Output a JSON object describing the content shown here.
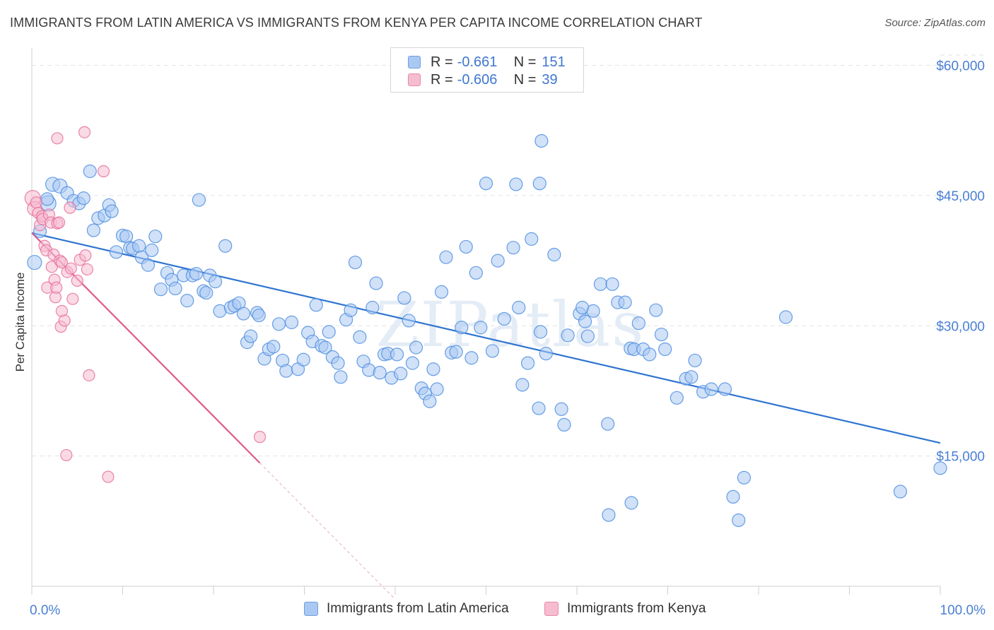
{
  "header": {
    "title": "IMMIGRANTS FROM LATIN AMERICA VS IMMIGRANTS FROM KENYA PER CAPITA INCOME CORRELATION CHART",
    "source": "Source: ZipAtlas.com"
  },
  "watermark": "ZIPatlas",
  "legend": {
    "rows": [
      {
        "r_label": "R = ",
        "r_value": "-0.661",
        "n_label": "N = ",
        "n_value": "151",
        "color": "#a9c8f2",
        "border": "#6f9fe0"
      },
      {
        "r_label": "R = ",
        "r_value": "-0.606",
        "n_label": "N = ",
        "n_value": "39",
        "color": "#f6bcd0",
        "border": "#e88aab"
      }
    ]
  },
  "bottom_legend": {
    "items": [
      {
        "label": "Immigrants from Latin America",
        "color": "#a9c8f2",
        "border": "#6f9fe0"
      },
      {
        "label": "Immigrants from Kenya",
        "color": "#f6bcd0",
        "border": "#e88aab"
      }
    ]
  },
  "chart_data": {
    "type": "scatter",
    "title": "IMMIGRANTS FROM LATIN AMERICA VS IMMIGRANTS FROM KENYA PER CAPITA INCOME CORRELATION CHART",
    "xlabel": "",
    "ylabel": "Per Capita Income",
    "xlim": [
      0,
      100
    ],
    "ylim": [
      0,
      62000
    ],
    "x_tick_labels": [
      "0.0%",
      "100.0%"
    ],
    "y_ticks": [
      15000,
      30000,
      45000,
      60000
    ],
    "y_tick_labels": [
      "$15,000",
      "$30,000",
      "$45,000",
      "$60,000"
    ],
    "grid": true,
    "legend_position": "top-center",
    "series": [
      {
        "name": "Immigrants from Latin America",
        "color": "#4f8ee0",
        "fill": "#a9c8f2",
        "trend": {
          "x": [
            0,
            100
          ],
          "y": [
            40700,
            16500
          ],
          "color": "#2f74d0"
        },
        "points": [
          [
            0.3,
            37300
          ],
          [
            0.9,
            40900
          ],
          [
            1.8,
            44100
          ],
          [
            1.7,
            44600
          ],
          [
            2.3,
            46300
          ],
          [
            3.1,
            46100
          ],
          [
            3.9,
            45300
          ],
          [
            4.6,
            44400
          ],
          [
            5.2,
            44100
          ],
          [
            5.7,
            44700
          ],
          [
            6.4,
            47800
          ],
          [
            6.8,
            41000
          ],
          [
            7.3,
            42400
          ],
          [
            8.0,
            42700
          ],
          [
            8.5,
            43900
          ],
          [
            8.8,
            43200
          ],
          [
            9.3,
            38500
          ],
          [
            10.0,
            40400
          ],
          [
            10.4,
            40300
          ],
          [
            10.8,
            39000
          ],
          [
            11.1,
            38900
          ],
          [
            11.8,
            39200
          ],
          [
            12.1,
            37900
          ],
          [
            12.8,
            37000
          ],
          [
            13.2,
            38700
          ],
          [
            13.6,
            40300
          ],
          [
            14.2,
            34200
          ],
          [
            14.9,
            36100
          ],
          [
            15.4,
            35300
          ],
          [
            15.8,
            34300
          ],
          [
            16.7,
            35800
          ],
          [
            17.1,
            32900
          ],
          [
            17.7,
            35800
          ],
          [
            18.1,
            36000
          ],
          [
            18.4,
            44500
          ],
          [
            18.9,
            34000
          ],
          [
            19.2,
            33800
          ],
          [
            19.6,
            35800
          ],
          [
            20.2,
            35100
          ],
          [
            20.7,
            31700
          ],
          [
            21.3,
            39200
          ],
          [
            21.9,
            32100
          ],
          [
            22.3,
            32300
          ],
          [
            22.8,
            32600
          ],
          [
            23.3,
            31400
          ],
          [
            23.7,
            28100
          ],
          [
            24.1,
            28800
          ],
          [
            24.8,
            31500
          ],
          [
            25.0,
            31200
          ],
          [
            25.6,
            26200
          ],
          [
            26.1,
            27300
          ],
          [
            26.6,
            27600
          ],
          [
            27.2,
            30200
          ],
          [
            27.6,
            26000
          ],
          [
            28.0,
            24800
          ],
          [
            28.6,
            30400
          ],
          [
            29.3,
            25000
          ],
          [
            29.9,
            26100
          ],
          [
            30.4,
            29200
          ],
          [
            30.9,
            28200
          ],
          [
            31.3,
            32400
          ],
          [
            31.9,
            27700
          ],
          [
            32.3,
            27500
          ],
          [
            32.7,
            29300
          ],
          [
            33.1,
            26400
          ],
          [
            33.7,
            25700
          ],
          [
            34.0,
            24100
          ],
          [
            34.6,
            30700
          ],
          [
            35.1,
            31800
          ],
          [
            35.6,
            37300
          ],
          [
            36.1,
            28700
          ],
          [
            36.5,
            25900
          ],
          [
            37.1,
            24900
          ],
          [
            37.5,
            32100
          ],
          [
            37.9,
            34900
          ],
          [
            38.3,
            24600
          ],
          [
            38.8,
            26700
          ],
          [
            39.2,
            26800
          ],
          [
            39.6,
            24000
          ],
          [
            40.2,
            26700
          ],
          [
            40.6,
            24500
          ],
          [
            41.0,
            33200
          ],
          [
            41.5,
            30600
          ],
          [
            41.9,
            25700
          ],
          [
            42.3,
            27500
          ],
          [
            42.9,
            22800
          ],
          [
            43.3,
            22200
          ],
          [
            43.8,
            21300
          ],
          [
            44.2,
            25000
          ],
          [
            44.6,
            22700
          ],
          [
            45.1,
            33900
          ],
          [
            45.6,
            37900
          ],
          [
            46.2,
            26900
          ],
          [
            46.7,
            27000
          ],
          [
            47.3,
            29800
          ],
          [
            47.8,
            39100
          ],
          [
            48.4,
            26300
          ],
          [
            48.9,
            36100
          ],
          [
            49.4,
            29800
          ],
          [
            50.0,
            46400
          ],
          [
            50.7,
            27100
          ],
          [
            51.3,
            37500
          ],
          [
            52.0,
            30800
          ],
          [
            53.0,
            39000
          ],
          [
            53.3,
            46300
          ],
          [
            53.6,
            32100
          ],
          [
            54.0,
            23200
          ],
          [
            54.6,
            25700
          ],
          [
            55.0,
            40000
          ],
          [
            55.8,
            20500
          ],
          [
            56.0,
            29300
          ],
          [
            56.6,
            26800
          ],
          [
            57.5,
            38200
          ],
          [
            58.3,
            20400
          ],
          [
            58.6,
            18600
          ],
          [
            59.0,
            28900
          ],
          [
            60.3,
            31400
          ],
          [
            60.6,
            32100
          ],
          [
            60.9,
            30500
          ],
          [
            61.2,
            28800
          ],
          [
            61.8,
            31700
          ],
          [
            62.6,
            34800
          ],
          [
            63.4,
            18700
          ],
          [
            63.9,
            34800
          ],
          [
            64.5,
            32700
          ],
          [
            65.3,
            32700
          ],
          [
            65.9,
            27400
          ],
          [
            66.3,
            27300
          ],
          [
            66.8,
            30300
          ],
          [
            67.3,
            27300
          ],
          [
            68.0,
            26700
          ],
          [
            68.7,
            31800
          ],
          [
            69.3,
            29000
          ],
          [
            69.7,
            27300
          ],
          [
            71.0,
            21700
          ],
          [
            72.0,
            23900
          ],
          [
            72.6,
            24100
          ],
          [
            73.0,
            26000
          ],
          [
            73.9,
            22400
          ],
          [
            74.8,
            22700
          ],
          [
            76.3,
            22700
          ],
          [
            77.2,
            10300
          ],
          [
            77.8,
            7600
          ],
          [
            78.4,
            12500
          ],
          [
            83.0,
            31000
          ],
          [
            56.1,
            51300
          ],
          [
            55.9,
            46400
          ],
          [
            63.5,
            8200
          ],
          [
            66.0,
            9600
          ],
          [
            95.6,
            10900
          ],
          [
            100.0,
            13600
          ]
        ]
      },
      {
        "name": "Immigrants from Kenya",
        "color": "#e6709c",
        "fill": "#f6bcd0",
        "trend": {
          "x": [
            0,
            25.1
          ],
          "y": [
            40700,
            14200
          ],
          "dash_to": {
            "x": 40,
            "y": -1500
          },
          "color": "#e05a8c"
        },
        "points": [
          [
            0.1,
            44700
          ],
          [
            0.3,
            43500
          ],
          [
            0.5,
            44200
          ],
          [
            0.7,
            43000
          ],
          [
            0.9,
            41600
          ],
          [
            1.1,
            42600
          ],
          [
            1.2,
            42300
          ],
          [
            1.4,
            39200
          ],
          [
            1.6,
            38700
          ],
          [
            1.7,
            34400
          ],
          [
            1.9,
            42800
          ],
          [
            2.1,
            41900
          ],
          [
            2.2,
            36800
          ],
          [
            2.4,
            38200
          ],
          [
            2.5,
            35300
          ],
          [
            2.6,
            33300
          ],
          [
            2.8,
            41800
          ],
          [
            3.0,
            41900
          ],
          [
            2.7,
            34400
          ],
          [
            3.1,
            37500
          ],
          [
            3.3,
            37300
          ],
          [
            3.2,
            29900
          ],
          [
            3.3,
            31700
          ],
          [
            3.6,
            30600
          ],
          [
            3.9,
            36200
          ],
          [
            4.2,
            43600
          ],
          [
            4.3,
            36600
          ],
          [
            4.5,
            33100
          ],
          [
            5.0,
            35200
          ],
          [
            5.3,
            37600
          ],
          [
            5.9,
            38100
          ],
          [
            6.1,
            36500
          ],
          [
            6.3,
            24300
          ],
          [
            5.8,
            52300
          ],
          [
            7.9,
            47800
          ],
          [
            2.8,
            51600
          ],
          [
            3.8,
            15100
          ],
          [
            8.4,
            12600
          ],
          [
            25.1,
            17200
          ]
        ]
      }
    ]
  }
}
